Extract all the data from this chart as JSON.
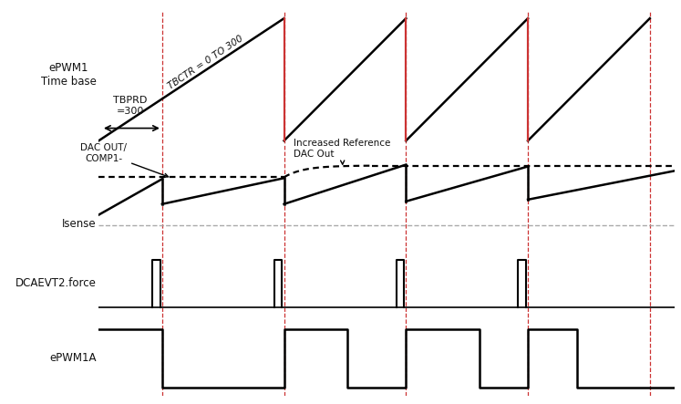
{
  "bg_color": "#ffffff",
  "dashed_line_color": "#cc3333",
  "solid_line_color": "#000000",
  "gray_dashed_color": "#aaaaaa",
  "label_timebase": "ePWM1\nTime base",
  "label_isense": "Isense",
  "label_dcaevt": "DCAEVT2.force",
  "label_epwm1a": "ePWM1A",
  "note_tbctr": "TBCTR = 0 TO 300",
  "note_tbprd": "TBPRD\n=300",
  "note_dac": "DAC OUT/\nCOMP1-",
  "note_ref": "Increased Reference\nDAC Out",
  "periods": [
    0.13,
    0.38,
    0.63,
    0.88,
    1.13
  ],
  "xmin": 0.0,
  "xmax": 1.18
}
